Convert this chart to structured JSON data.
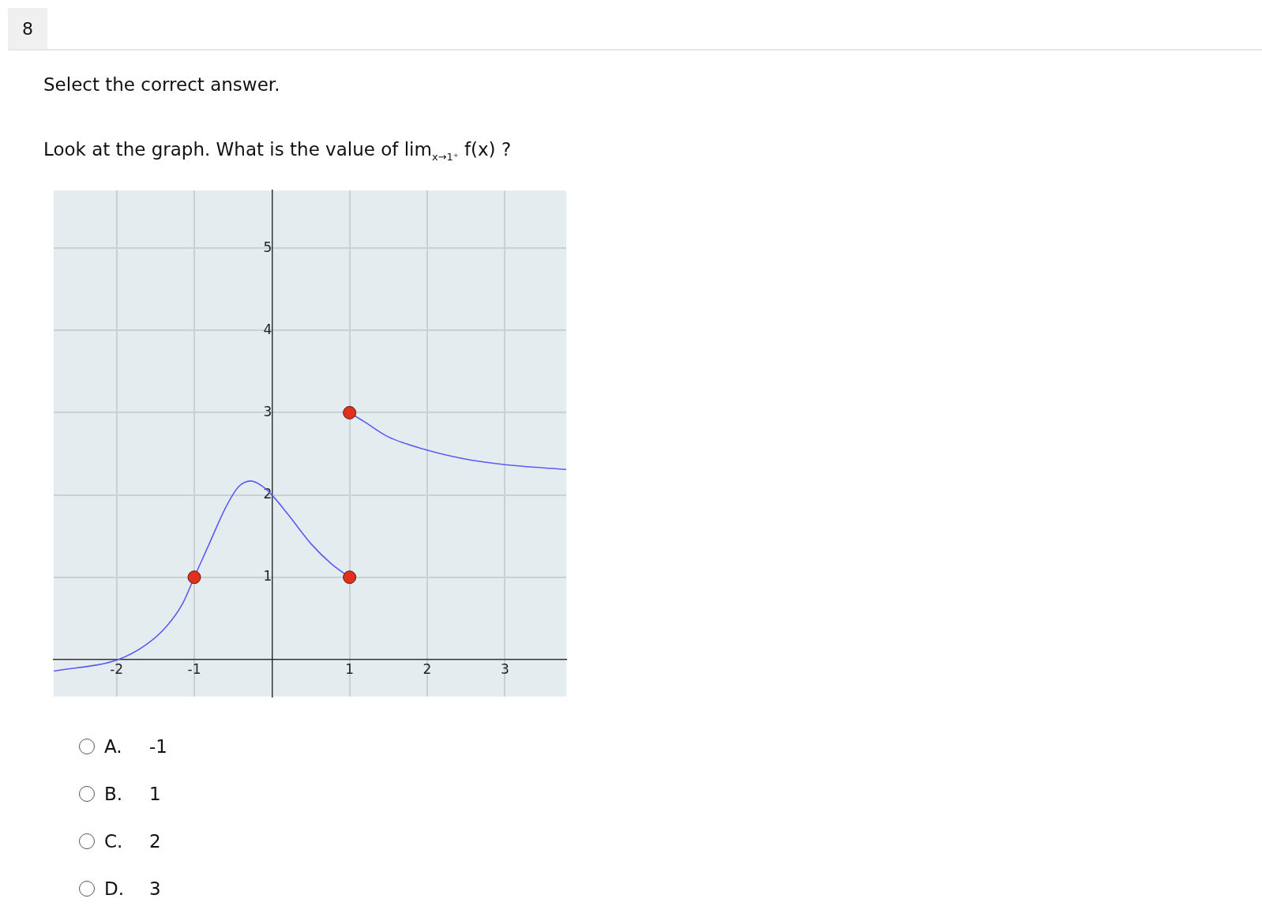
{
  "chart_data": {
    "type": "line",
    "title": "Select the correct answer.",
    "subtitle": "Look at the graph. What is the value of lim$_{x→1⁺}$ f(x) ?",
    "annotations": [
      "8",
      "A.",
      "-1",
      "B.",
      "1",
      "C.",
      "2",
      "D.",
      "3"
    ],
    "xlim": [
      -2.81,
      3.79
    ],
    "ylim": [
      -0.45,
      5.7
    ],
    "xticks": [
      -2,
      -1,
      1,
      2,
      3
    ],
    "yticks": [
      1,
      2,
      3,
      4,
      5
    ],
    "grid": true,
    "legend": false,
    "series": [
      {
        "type": "line",
        "marker": "none",
        "color": "#5b5bf2",
        "x": [
          -2.81,
          -1.98,
          -1.62,
          -1.36,
          -1.15,
          -1,
          -0.81,
          -0.6,
          -0.43,
          -0.27,
          -0.13,
          0,
          0.21,
          0.51,
          0.77,
          1
        ],
        "values": [
          -0.14,
          0,
          0.18,
          0.4,
          0.68,
          1,
          1.4,
          1.84,
          2.1,
          2.17,
          2.11,
          2,
          1.76,
          1.4,
          1.16,
          1
        ]
      },
      {
        "type": "line",
        "marker": "none",
        "color": "#5b5bf2",
        "x": [
          1,
          1.19,
          1.49,
          1.98,
          2.47,
          2.98,
          3.79
        ],
        "values": [
          3,
          2.89,
          2.71,
          2.55,
          2.44,
          2.37,
          2.31
        ]
      },
      {
        "type": "scatter",
        "marker": "circle",
        "color": "#e2301e",
        "x": [
          -1,
          1,
          1
        ],
        "values": [
          1,
          1,
          3
        ]
      }
    ]
  }
}
